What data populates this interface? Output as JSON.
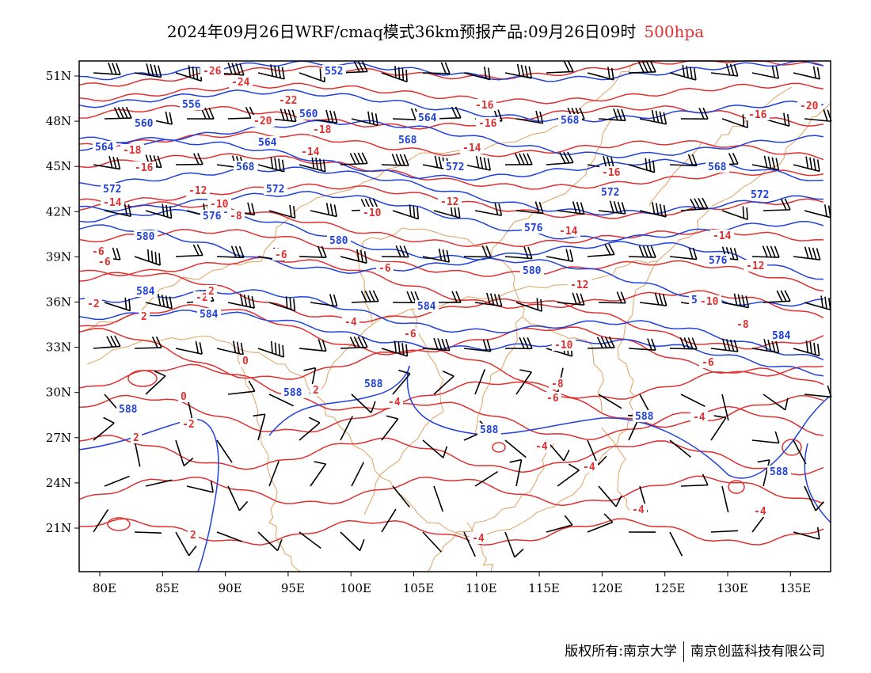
{
  "title": {
    "main": "2024年09月26日WRF/cmaq模式36km预报产品:09月26日09时",
    "level": "500hpa",
    "level_color": "#e03030"
  },
  "footer": {
    "copyright": "版权所有:南京大学",
    "company": "南京创蓝科技有限公司"
  },
  "axes": {
    "lon_labels": [
      "80E",
      "85E",
      "90E",
      "95E",
      "100E",
      "105E",
      "110E",
      "115E",
      "120E",
      "125E",
      "130E",
      "135E"
    ],
    "lat_labels": [
      "51N",
      "48N",
      "45N",
      "42N",
      "39N",
      "36N",
      "33N",
      "30N",
      "27N",
      "24N",
      "21N"
    ]
  },
  "colors": {
    "height_contour": "#2040e0",
    "temperature_contour": "#e03030",
    "boundary": "#e0a060",
    "wind_barb": "#000000"
  },
  "height_labels": [
    "552",
    "556",
    "560",
    "564",
    "568",
    "572",
    "576",
    "580",
    "584",
    "588"
  ],
  "temperature_labels": [
    "-20",
    "-18",
    "-16",
    "-14",
    "-12",
    "-10",
    "-8",
    "-6",
    "-4",
    "-2",
    "0",
    "2",
    "-22",
    "-24",
    "-26"
  ]
}
